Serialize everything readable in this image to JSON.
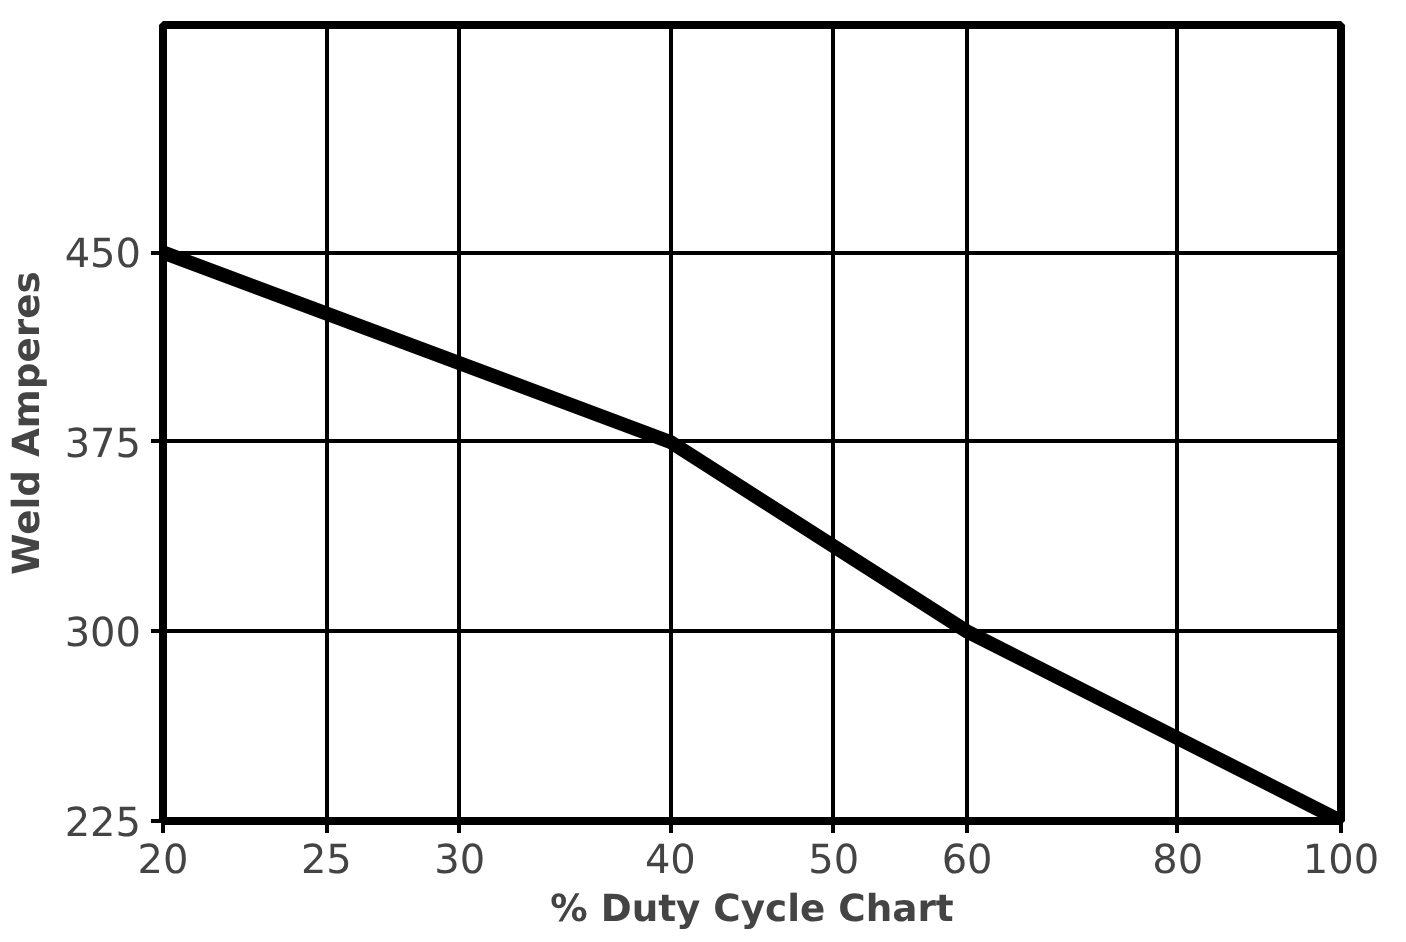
{
  "chart_data": {
    "type": "line",
    "xlabel": "% Duty Cycle Chart",
    "ylabel": "Weld Amperes",
    "x": [
      20,
      40,
      60,
      100
    ],
    "series": [
      {
        "color": "#000000",
        "values": [
          450,
          375,
          300,
          225
        ]
      }
    ],
    "log": "x",
    "xlim": [
      20,
      100
    ],
    "xticks": [
      20,
      25,
      30,
      40,
      50,
      60,
      80,
      100
    ],
    "ylim": [
      225,
      540
    ],
    "yticks": [
      225,
      300,
      375,
      450
    ],
    "grid": true,
    "marker": "none",
    "line_style": "solid"
  }
}
